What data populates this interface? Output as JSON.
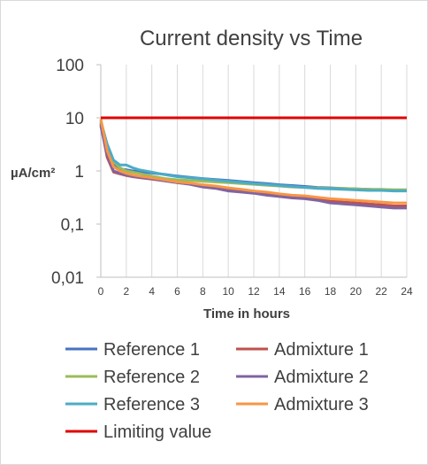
{
  "chart_data": {
    "type": "line",
    "title": "Current density vs Time",
    "xlabel": "Time in hours",
    "ylabel": "µA/cm²",
    "yscale": "log",
    "xlim": [
      0,
      24
    ],
    "ylim": [
      0.01,
      100
    ],
    "x_ticks": [
      "0",
      "2",
      "4",
      "6",
      "8",
      "10",
      "12",
      "14",
      "16",
      "18",
      "20",
      "22",
      "24"
    ],
    "y_ticks": [
      {
        "value": 100,
        "label": "100"
      },
      {
        "value": 10,
        "label": "10"
      },
      {
        "value": 1,
        "label": "1"
      },
      {
        "value": 0.1,
        "label": "0,1"
      },
      {
        "value": 0.01,
        "label": "0,01"
      }
    ],
    "grid": "vertical",
    "legend_position": "bottom",
    "series": [
      {
        "name": "Reference 1",
        "color": "#4472C4",
        "x": [
          0,
          0.5,
          1,
          1.5,
          2,
          2.5,
          3,
          4,
          5,
          6,
          7,
          8,
          9,
          10,
          11,
          12,
          13,
          14,
          15,
          16,
          17,
          18,
          19,
          20,
          21,
          22,
          23,
          24
        ],
        "values": [
          8,
          2.6,
          1.4,
          1.1,
          1.05,
          1.0,
          0.97,
          0.92,
          0.86,
          0.8,
          0.76,
          0.72,
          0.69,
          0.66,
          0.63,
          0.6,
          0.58,
          0.55,
          0.53,
          0.51,
          0.49,
          0.48,
          0.47,
          0.46,
          0.45,
          0.44,
          0.44,
          0.44
        ]
      },
      {
        "name": "Admixture 1",
        "color": "#C0504D",
        "x": [
          0,
          0.5,
          1,
          1.5,
          2,
          2.5,
          3,
          4,
          5,
          6,
          7,
          8,
          9,
          10,
          11,
          12,
          13,
          14,
          15,
          16,
          17,
          18,
          19,
          20,
          21,
          22,
          23,
          24
        ],
        "values": [
          7.5,
          1.8,
          0.95,
          0.88,
          0.82,
          0.78,
          0.75,
          0.7,
          0.65,
          0.6,
          0.57,
          0.52,
          0.48,
          0.44,
          0.41,
          0.39,
          0.36,
          0.34,
          0.32,
          0.31,
          0.29,
          0.27,
          0.26,
          0.25,
          0.24,
          0.23,
          0.22,
          0.22
        ]
      },
      {
        "name": "Reference 2",
        "color": "#9BBB59",
        "x": [
          0,
          0.5,
          1,
          1.5,
          2,
          2.5,
          3,
          4,
          5,
          6,
          7,
          8,
          9,
          10,
          11,
          12,
          13,
          14,
          15,
          16,
          17,
          18,
          19,
          20,
          21,
          22,
          23,
          24
        ],
        "values": [
          9,
          3.0,
          1.5,
          1.15,
          1.0,
          0.95,
          0.9,
          0.8,
          0.72,
          0.68,
          0.66,
          0.64,
          0.62,
          0.6,
          0.58,
          0.56,
          0.54,
          0.52,
          0.5,
          0.49,
          0.48,
          0.47,
          0.47,
          0.46,
          0.45,
          0.45,
          0.44,
          0.44
        ]
      },
      {
        "name": "Admixture 2",
        "color": "#8064A2",
        "x": [
          0,
          0.5,
          1,
          1.5,
          2,
          2.5,
          3,
          4,
          5,
          6,
          7,
          8,
          9,
          10,
          11,
          12,
          13,
          14,
          15,
          16,
          17,
          18,
          19,
          20,
          21,
          22,
          23,
          24
        ],
        "values": [
          7,
          2.0,
          1.0,
          0.9,
          0.84,
          0.79,
          0.76,
          0.71,
          0.65,
          0.6,
          0.56,
          0.5,
          0.47,
          0.42,
          0.4,
          0.38,
          0.35,
          0.33,
          0.31,
          0.3,
          0.28,
          0.25,
          0.24,
          0.23,
          0.22,
          0.21,
          0.2,
          0.2
        ]
      },
      {
        "name": "Reference 3",
        "color": "#4BACC6",
        "x": [
          0,
          0.5,
          1,
          1.5,
          2,
          2.5,
          3,
          4,
          5,
          6,
          7,
          8,
          9,
          10,
          11,
          12,
          13,
          14,
          15,
          16,
          17,
          18,
          19,
          20,
          21,
          22,
          23,
          24
        ],
        "values": [
          8.5,
          3.2,
          1.6,
          1.3,
          1.3,
          1.15,
          1.05,
          0.95,
          0.85,
          0.78,
          0.74,
          0.71,
          0.67,
          0.64,
          0.61,
          0.58,
          0.56,
          0.53,
          0.51,
          0.49,
          0.47,
          0.46,
          0.45,
          0.44,
          0.43,
          0.43,
          0.42,
          0.42
        ]
      },
      {
        "name": "Admixture 3",
        "color": "#F79646",
        "x": [
          0,
          0.5,
          1,
          1.5,
          2,
          2.5,
          3,
          4,
          5,
          6,
          7,
          8,
          9,
          10,
          11,
          12,
          13,
          14,
          15,
          16,
          17,
          18,
          19,
          20,
          21,
          22,
          23,
          24
        ],
        "values": [
          9.5,
          2.4,
          1.2,
          1.0,
          0.9,
          0.84,
          0.8,
          0.74,
          0.68,
          0.62,
          0.59,
          0.55,
          0.52,
          0.48,
          0.45,
          0.42,
          0.4,
          0.37,
          0.35,
          0.34,
          0.32,
          0.3,
          0.29,
          0.28,
          0.27,
          0.26,
          0.25,
          0.25
        ]
      },
      {
        "name": "Limiting value",
        "color": "#E00000",
        "x": [
          0,
          24
        ],
        "values": [
          10,
          10
        ]
      }
    ]
  }
}
